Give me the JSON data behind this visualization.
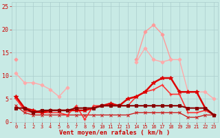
{
  "bg_color": "#c8eae5",
  "grid_color": "#aacccc",
  "xlabel": "Vent moyen/en rafales ( km/h )",
  "xlabel_color": "#cc0000",
  "ylabel_ticks": [
    0,
    5,
    10,
    15,
    20,
    25
  ],
  "xlim": [
    -0.5,
    23.5
  ],
  "ylim": [
    0,
    26
  ],
  "x": [
    0,
    1,
    2,
    3,
    4,
    5,
    6,
    7,
    8,
    9,
    10,
    11,
    12,
    13,
    14,
    15,
    16,
    17,
    18,
    19,
    20,
    21,
    22,
    23
  ],
  "series": [
    {
      "y": [
        13.5,
        null,
        null,
        null,
        null,
        null,
        null,
        null,
        null,
        null,
        null,
        null,
        null,
        null,
        13.5,
        19.5,
        21.0,
        19.0,
        13.5,
        null,
        null,
        null,
        null,
        null
      ],
      "color": "#ff9999",
      "lw": 1.0,
      "marker": "D",
      "ms": 2.5,
      "zorder": 2,
      "connect_gaps": false
    },
    {
      "y": [
        10.5,
        8.5,
        8.5,
        8.0,
        7.0,
        5.5,
        7.5,
        null,
        null,
        null,
        null,
        null,
        null,
        null,
        13.0,
        16.0,
        13.5,
        13.0,
        13.5,
        13.5,
        6.5,
        6.5,
        6.5,
        5.0
      ],
      "color": "#ffaaaa",
      "lw": 1.0,
      "marker": "D",
      "ms": 2.5,
      "zorder": 2,
      "connect_gaps": false
    },
    {
      "y": [
        3.0,
        3.0,
        2.0,
        2.5,
        2.5,
        2.5,
        2.5,
        3.0,
        3.0,
        3.0,
        3.5,
        3.5,
        3.5,
        3.5,
        3.5,
        3.5,
        3.5,
        3.5,
        3.5,
        3.5,
        3.0,
        3.0,
        3.0,
        1.5
      ],
      "color": "#880000",
      "lw": 1.5,
      "marker": "s",
      "ms": 2.5,
      "zorder": 5,
      "connect_gaps": true
    },
    {
      "y": [
        5.5,
        3.0,
        2.5,
        2.0,
        2.5,
        2.5,
        2.5,
        2.5,
        2.5,
        3.0,
        3.5,
        4.0,
        3.5,
        5.0,
        5.5,
        6.5,
        8.5,
        9.5,
        9.5,
        6.5,
        6.5,
        6.5,
        3.0,
        1.5
      ],
      "color": "#dd0000",
      "lw": 1.8,
      "marker": "*",
      "ms": 4,
      "zorder": 4,
      "connect_gaps": true
    },
    {
      "y": [
        5.0,
        2.5,
        2.0,
        2.0,
        2.0,
        2.0,
        1.5,
        3.5,
        0.5,
        3.5,
        3.5,
        3.5,
        3.5,
        3.5,
        5.5,
        6.5,
        7.0,
        8.0,
        6.0,
        6.0,
        2.0,
        2.0,
        2.5,
        1.5
      ],
      "color": "#ff3333",
      "lw": 1.2,
      "marker": "+",
      "ms": 3.5,
      "zorder": 3,
      "connect_gaps": true
    },
    {
      "y": [
        3.5,
        2.0,
        1.5,
        1.5,
        1.5,
        1.5,
        1.5,
        1.5,
        1.5,
        1.5,
        1.5,
        1.5,
        1.5,
        1.5,
        2.0,
        2.0,
        2.0,
        2.0,
        2.0,
        2.0,
        1.0,
        1.0,
        1.5,
        1.5
      ],
      "color": "#cc2222",
      "lw": 1.0,
      "marker": "x",
      "ms": 2.5,
      "zorder": 2,
      "connect_gaps": true
    }
  ],
  "tick_color": "#cc0000"
}
